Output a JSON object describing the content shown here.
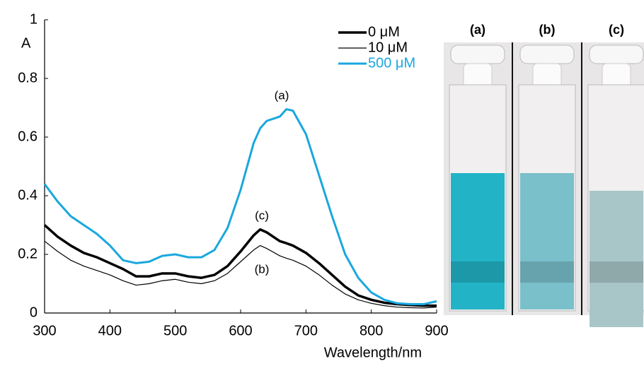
{
  "chart_data": {
    "type": "line",
    "x_label": "Wavelength/nm",
    "y_label": "A",
    "x": [
      300,
      320,
      340,
      360,
      380,
      400,
      420,
      440,
      460,
      480,
      500,
      520,
      540,
      560,
      580,
      600,
      620,
      630,
      640,
      660,
      670,
      680,
      700,
      720,
      740,
      760,
      780,
      800,
      820,
      840,
      860,
      880,
      900
    ],
    "series": [
      {
        "name": "0 μM",
        "color": "#000000",
        "width": 3.5,
        "values": [
          0.3,
          0.26,
          0.23,
          0.205,
          0.19,
          0.17,
          0.15,
          0.125,
          0.125,
          0.135,
          0.135,
          0.125,
          0.12,
          0.13,
          0.16,
          0.21,
          0.265,
          0.285,
          0.275,
          0.245,
          0.238,
          0.23,
          0.205,
          0.17,
          0.13,
          0.09,
          0.06,
          0.045,
          0.035,
          0.03,
          0.027,
          0.025,
          0.025
        ]
      },
      {
        "name": "10 μM",
        "color": "#000000",
        "width": 1.2,
        "values": [
          0.245,
          0.21,
          0.18,
          0.16,
          0.145,
          0.13,
          0.11,
          0.095,
          0.1,
          0.11,
          0.115,
          0.105,
          0.1,
          0.11,
          0.135,
          0.175,
          0.215,
          0.23,
          0.22,
          0.195,
          0.187,
          0.18,
          0.16,
          0.13,
          0.095,
          0.065,
          0.045,
          0.033,
          0.025,
          0.02,
          0.018,
          0.017,
          0.02
        ]
      },
      {
        "name": "500 μM",
        "color": "#1aa7de",
        "width": 3,
        "values": [
          0.44,
          0.38,
          0.33,
          0.3,
          0.27,
          0.23,
          0.18,
          0.17,
          0.175,
          0.195,
          0.2,
          0.19,
          0.19,
          0.215,
          0.29,
          0.42,
          0.58,
          0.63,
          0.655,
          0.67,
          0.695,
          0.69,
          0.61,
          0.47,
          0.33,
          0.2,
          0.12,
          0.07,
          0.045,
          0.033,
          0.03,
          0.03,
          0.04
        ]
      }
    ],
    "annotations": [
      "(a)",
      "(c)",
      "(b)"
    ],
    "xlim": [
      300,
      900
    ],
    "ylim": [
      0,
      1
    ],
    "xticks": [
      300,
      400,
      500,
      600,
      700,
      800,
      900
    ],
    "yticks": [
      0,
      0.2,
      0.4,
      0.6,
      0.8,
      1
    ],
    "legend": "upper right"
  },
  "photo": {
    "labels": [
      "(a)",
      "(b)",
      "(c)"
    ]
  }
}
